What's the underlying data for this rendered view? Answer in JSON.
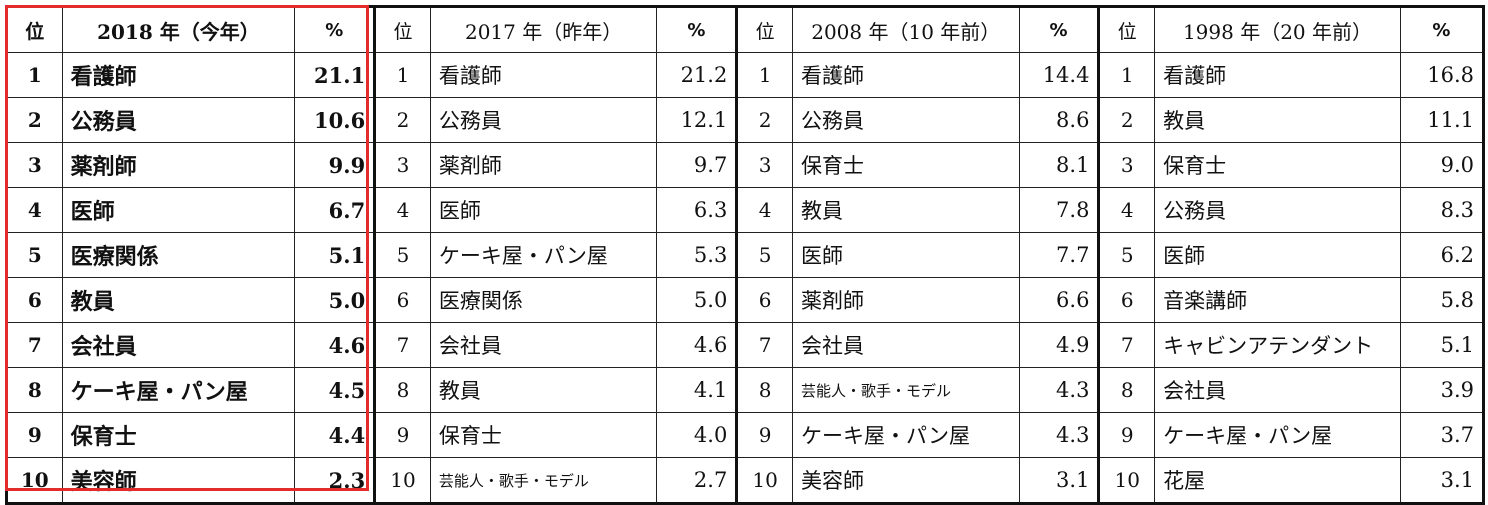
{
  "columns": [
    {
      "rank_label": "位",
      "year_label": "2018 年（今年）",
      "pct_label": "%"
    },
    {
      "rank_label": "位",
      "year_label": "2017 年（昨年）",
      "pct_label": "%"
    },
    {
      "rank_label": "位",
      "year_label": "2008 年（10 年前）",
      "pct_label": "%"
    },
    {
      "rank_label": "位",
      "year_label": "1998 年（20 年前）",
      "pct_label": "%"
    }
  ],
  "rows": [
    {
      "rank": "1",
      "y2018": {
        "job": "看護師",
        "pct": "21.1"
      },
      "y2017": {
        "job": "看護師",
        "pct": "21.2"
      },
      "y2008": {
        "job": "看護師",
        "pct": "14.4"
      },
      "y1998": {
        "job": "看護師",
        "pct": "16.8"
      }
    },
    {
      "rank": "2",
      "y2018": {
        "job": "公務員",
        "pct": "10.6"
      },
      "y2017": {
        "job": "公務員",
        "pct": "12.1"
      },
      "y2008": {
        "job": "公務員",
        "pct": "8.6"
      },
      "y1998": {
        "job": "教員",
        "pct": "11.1"
      }
    },
    {
      "rank": "3",
      "y2018": {
        "job": "薬剤師",
        "pct": "9.9"
      },
      "y2017": {
        "job": "薬剤師",
        "pct": "9.7"
      },
      "y2008": {
        "job": "保育士",
        "pct": "8.1"
      },
      "y1998": {
        "job": "保育士",
        "pct": "9.0"
      }
    },
    {
      "rank": "4",
      "y2018": {
        "job": "医師",
        "pct": "6.7"
      },
      "y2017": {
        "job": "医師",
        "pct": "6.3"
      },
      "y2008": {
        "job": "教員",
        "pct": "7.8"
      },
      "y1998": {
        "job": "公務員",
        "pct": "8.3"
      }
    },
    {
      "rank": "5",
      "y2018": {
        "job": "医療関係",
        "pct": "5.1"
      },
      "y2017": {
        "job": "ケーキ屋・パン屋",
        "pct": "5.3"
      },
      "y2008": {
        "job": "医師",
        "pct": "7.7"
      },
      "y1998": {
        "job": "医師",
        "pct": "6.2"
      }
    },
    {
      "rank": "6",
      "y2018": {
        "job": "教員",
        "pct": "5.0"
      },
      "y2017": {
        "job": "医療関係",
        "pct": "5.0"
      },
      "y2008": {
        "job": "薬剤師",
        "pct": "6.6"
      },
      "y1998": {
        "job": "音楽講師",
        "pct": "5.8"
      }
    },
    {
      "rank": "7",
      "y2018": {
        "job": "会社員",
        "pct": "4.6"
      },
      "y2017": {
        "job": "会社員",
        "pct": "4.6"
      },
      "y2008": {
        "job": "会社員",
        "pct": "4.9"
      },
      "y1998": {
        "job": "キャビンアテンダント",
        "pct": "5.1"
      }
    },
    {
      "rank": "8",
      "y2018": {
        "job": "ケーキ屋・パン屋",
        "pct": "4.5"
      },
      "y2017": {
        "job": "教員",
        "pct": "4.1"
      },
      "y2008": {
        "job": "芸能人・歌手・モデル",
        "pct": "4.3"
      },
      "y1998": {
        "job": "会社員",
        "pct": "3.9"
      }
    },
    {
      "rank": "9",
      "y2018": {
        "job": "保育士",
        "pct": "4.4"
      },
      "y2017": {
        "job": "保育士",
        "pct": "4.0"
      },
      "y2008": {
        "job": "ケーキ屋・パン屋",
        "pct": "4.3"
      },
      "y1998": {
        "job": "ケーキ屋・パン屋",
        "pct": "3.7"
      }
    },
    {
      "rank": "10",
      "y2018": {
        "job": "美容師",
        "pct": "2.3"
      },
      "y2017": {
        "job": "芸能人・歌手・モデル",
        "pct": "2.7"
      },
      "y2008": {
        "job": "美容師",
        "pct": "3.1"
      },
      "y1998": {
        "job": "花屋",
        "pct": "3.1"
      }
    }
  ],
  "colors": {
    "highlight": "#e32b2b",
    "border": "#222222"
  }
}
